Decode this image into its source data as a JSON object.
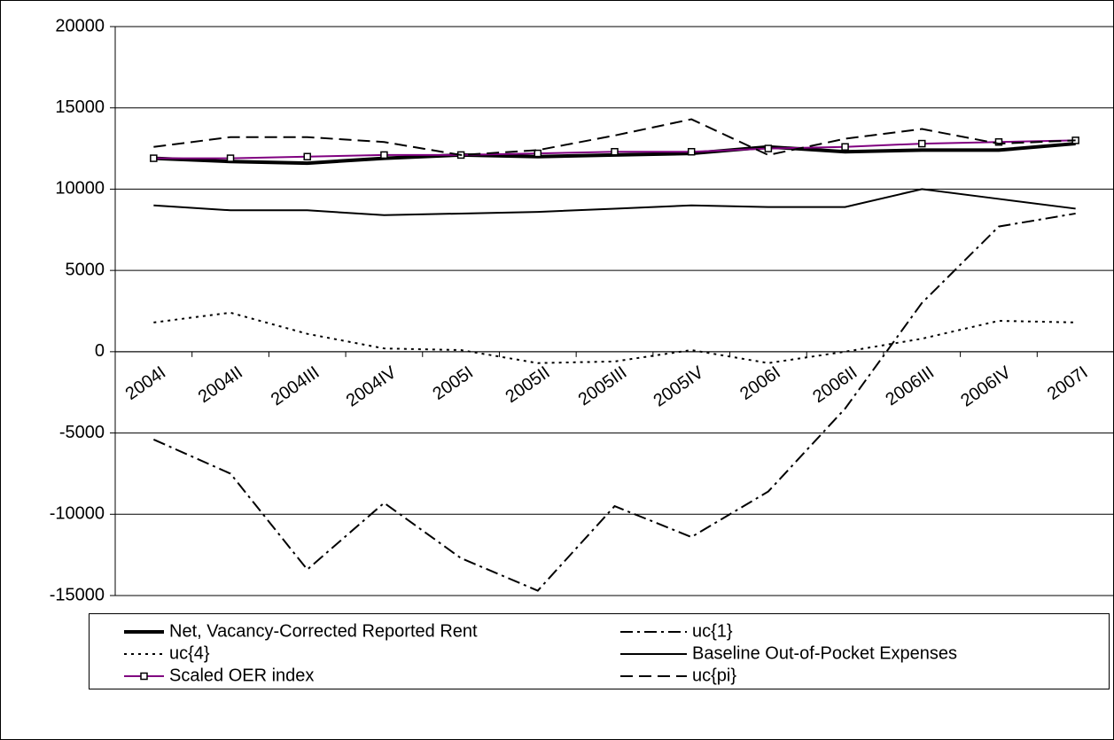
{
  "chart_data": {
    "type": "line",
    "categories": [
      "2004I",
      "2004II",
      "2004III",
      "2004IV",
      "2005I",
      "2005II",
      "2005III",
      "2005IV",
      "2006I",
      "2006II",
      "2006III",
      "2006IV",
      "2007I"
    ],
    "series": [
      {
        "name": "Net, Vacancy-Corrected Reported Rent",
        "color": "#000000",
        "style": "thick",
        "values": [
          11900,
          11700,
          11600,
          11900,
          12100,
          12000,
          12100,
          12200,
          12600,
          12300,
          12400,
          12400,
          12800
        ]
      },
      {
        "name": "uc{1}",
        "color": "#000000",
        "style": "dashdot",
        "values": [
          -5400,
          -7500,
          -13400,
          -9300,
          -12700,
          -14700,
          -9500,
          -11400,
          -8600,
          -3500,
          3000,
          7700,
          8500
        ]
      },
      {
        "name": "uc{4}",
        "color": "#000000",
        "style": "dot",
        "values": [
          1800,
          2400,
          1100,
          200,
          100,
          -700,
          -600,
          100,
          -700,
          0,
          800,
          1900,
          1800
        ]
      },
      {
        "name": "Baseline Out-of-Pocket Expenses",
        "color": "#000000",
        "style": "solid",
        "values": [
          9000,
          8700,
          8700,
          8400,
          8500,
          8600,
          8800,
          9000,
          8900,
          8900,
          10000,
          9400,
          8800
        ]
      },
      {
        "name": "Scaled OER index",
        "color": "#800080",
        "style": "marker",
        "values": [
          11900,
          11900,
          12000,
          12100,
          12100,
          12200,
          12300,
          12300,
          12500,
          12600,
          12800,
          12900,
          13000
        ]
      },
      {
        "name": "uc{pi}",
        "color": "#000000",
        "style": "dash",
        "values": [
          12600,
          13200,
          13200,
          12900,
          12100,
          12400,
          13300,
          14300,
          12100,
          13100,
          13700,
          12800,
          13000
        ]
      }
    ],
    "ylim": [
      -15000,
      20000
    ],
    "yticks": [
      -15000,
      -10000,
      -5000,
      0,
      5000,
      10000,
      15000,
      20000
    ],
    "grid": true
  }
}
